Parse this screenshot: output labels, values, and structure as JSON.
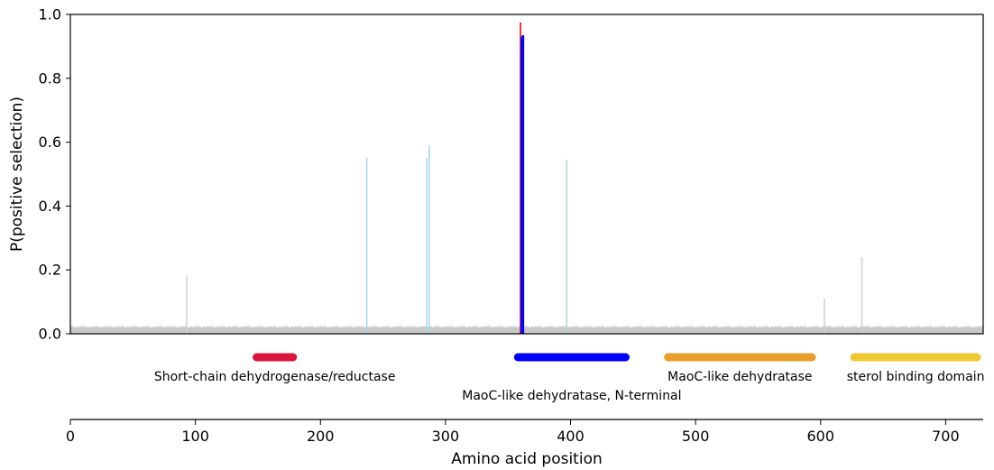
{
  "chart_data": {
    "type": "bar",
    "ylabel": "P(positive selection)",
    "xlabel": "Amino acid position",
    "xlim": [
      0,
      730
    ],
    "ylim": [
      0.0,
      1.0
    ],
    "y_ticks": [
      "0.0",
      "0.2",
      "0.4",
      "0.6",
      "0.8",
      "1.0"
    ],
    "x_ticks": [
      "0",
      "100",
      "200",
      "300",
      "400",
      "500",
      "600",
      "700"
    ],
    "y_tick_values": [
      0.0,
      0.2,
      0.4,
      0.6,
      0.8,
      1.0
    ],
    "x_tick_values": [
      0,
      100,
      200,
      300,
      400,
      500,
      600,
      700
    ],
    "background_level": 0.02,
    "background_color": "#c8c8c8",
    "spikes": [
      {
        "x": 93,
        "y": 0.18,
        "color": "#d3d3d3"
      },
      {
        "x": 237,
        "y": 0.55,
        "color": "#add8e6"
      },
      {
        "x": 285,
        "y": 0.55,
        "color": "#add8e6"
      },
      {
        "x": 287,
        "y": 0.59,
        "color": "#add8e6"
      },
      {
        "x": 360,
        "y": 0.975,
        "color": "#ff0000"
      },
      {
        "x": 361,
        "y": 0.93,
        "color": "#0000ff"
      },
      {
        "x": 362,
        "y": 0.935,
        "color": "#0000ff"
      },
      {
        "x": 397,
        "y": 0.545,
        "color": "#add8e6"
      },
      {
        "x": 603,
        "y": 0.11,
        "color": "#d3d3d3"
      },
      {
        "x": 633,
        "y": 0.24,
        "color": "#d3d3d3"
      }
    ],
    "domains": [
      {
        "label": "Short-chain dehydrogenase/reductase",
        "start": 149,
        "end": 178,
        "color": "#dc143c",
        "label_row": 1
      },
      {
        "label": "MaoC-like dehydratase, N-terminal",
        "start": 358,
        "end": 444,
        "color": "#0000ff",
        "label_row": 2
      },
      {
        "label": "MaoC-like dehydratase",
        "start": 478,
        "end": 593,
        "color": "#e89c2c",
        "label_row": 1
      },
      {
        "label": "sterol binding domain",
        "start": 627,
        "end": 725,
        "color": "#f0c832",
        "label_row": 1
      }
    ]
  }
}
